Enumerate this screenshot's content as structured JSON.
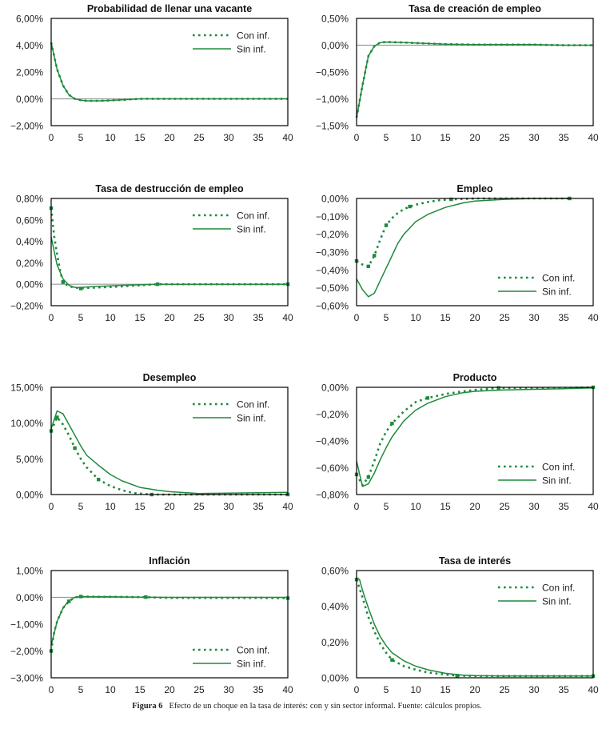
{
  "colors": {
    "series": "#1e8a3c",
    "zero_line": "#9a9a9a",
    "axis": "#000000"
  },
  "legend": {
    "con_label": "Con inf.",
    "sin_label": "Sin inf."
  },
  "caption": {
    "label": "Figura 6",
    "text": "Efecto de un choque en la tasa de interés: con y sin sector informal. Fuente: cálculos propios."
  },
  "chart_data": [
    {
      "type": "line",
      "title": "Probabilidad de llenar una vacante",
      "xlabel": "",
      "ylabel": "",
      "xlim": [
        0,
        40
      ],
      "ylim": [
        -2,
        6
      ],
      "xticks": [
        "0",
        "5",
        "10",
        "15",
        "20",
        "25",
        "30",
        "35",
        "40"
      ],
      "yticks": [
        -2,
        0,
        2,
        4,
        6
      ],
      "ytick_labels": [
        "−2,00%",
        "0,00%",
        "2,00%",
        "4,00%",
        "6,00%"
      ],
      "legend_position": "top-right",
      "series": [
        {
          "name": "Con inf.",
          "style": "dotted",
          "markers": [],
          "x": [
            0,
            1,
            2,
            3,
            4,
            5,
            6,
            8,
            10,
            12,
            15,
            20,
            25,
            30,
            35,
            40
          ],
          "y": [
            4.2,
            2.2,
            1.0,
            0.3,
            0.0,
            -0.1,
            -0.15,
            -0.15,
            -0.12,
            -0.08,
            0.0,
            0.0,
            0.0,
            0.0,
            0.0,
            0.0
          ]
        },
        {
          "name": "Sin inf.",
          "style": "solid",
          "x": [
            0,
            1,
            2,
            3,
            4,
            5,
            6,
            8,
            10,
            12,
            15,
            20,
            25,
            30,
            35,
            40
          ],
          "y": [
            4.2,
            2.2,
            1.0,
            0.3,
            0.0,
            -0.1,
            -0.15,
            -0.15,
            -0.12,
            -0.08,
            0.0,
            0.0,
            0.0,
            0.0,
            0.0,
            0.0
          ]
        }
      ]
    },
    {
      "type": "line",
      "title": "Tasa de creación de empleo",
      "xlabel": "",
      "ylabel": "",
      "xlim": [
        0,
        40
      ],
      "ylim": [
        -1.5,
        0.5
      ],
      "xticks": [
        "0",
        "5",
        "10",
        "15",
        "20",
        "25",
        "30",
        "35",
        "40"
      ],
      "yticks": [
        -1.5,
        -1.0,
        -0.5,
        0,
        0.5
      ],
      "ytick_labels": [
        "−1,50%",
        "−1,00%",
        "−0,50%",
        "0,00%",
        "0,50%"
      ],
      "legend_position": "none",
      "series": [
        {
          "name": "Con inf.",
          "style": "dotted",
          "markers": [],
          "x": [
            0,
            1,
            2,
            3,
            4,
            5,
            8,
            10,
            15,
            20,
            25,
            30,
            35,
            40
          ],
          "y": [
            -1.35,
            -0.75,
            -0.2,
            -0.02,
            0.05,
            0.06,
            0.05,
            0.04,
            0.02,
            0.01,
            0.01,
            0.01,
            0.0,
            0.0
          ]
        },
        {
          "name": "Sin inf.",
          "style": "solid",
          "x": [
            0,
            1,
            2,
            3,
            4,
            5,
            8,
            10,
            15,
            20,
            25,
            30,
            35,
            40
          ],
          "y": [
            -1.35,
            -0.75,
            -0.2,
            -0.02,
            0.05,
            0.06,
            0.05,
            0.04,
            0.02,
            0.01,
            0.01,
            0.01,
            0.0,
            0.0
          ]
        }
      ]
    },
    {
      "type": "line",
      "title": "Tasa de destrucción de empleo",
      "xlabel": "",
      "ylabel": "",
      "xlim": [
        0,
        40
      ],
      "ylim": [
        -0.2,
        0.8
      ],
      "xticks": [
        "0",
        "5",
        "10",
        "15",
        "20",
        "25",
        "30",
        "35",
        "40"
      ],
      "yticks": [
        -0.2,
        0,
        0.2,
        0.4,
        0.6,
        0.8
      ],
      "ytick_labels": [
        "−0,20%",
        "0,00%",
        "0,20%",
        "0,40%",
        "0,60%",
        "0,80%"
      ],
      "legend_position": "top-right",
      "series": [
        {
          "name": "Con inf.",
          "style": "dotted",
          "markers": [
            0,
            2,
            5,
            18,
            40
          ],
          "x": [
            0,
            0.5,
            1,
            1.5,
            2,
            3,
            4,
            5,
            6,
            8,
            10,
            12,
            15,
            18,
            20,
            25,
            30,
            35,
            40
          ],
          "y": [
            0.71,
            0.45,
            0.28,
            0.13,
            0.02,
            -0.02,
            -0.03,
            -0.04,
            -0.035,
            -0.03,
            -0.025,
            -0.02,
            -0.01,
            0.0,
            0.0,
            0.0,
            0.0,
            0.0,
            0.0
          ]
        },
        {
          "name": "Sin inf.",
          "style": "solid",
          "x": [
            0,
            1,
            2,
            3,
            4,
            5,
            6,
            8,
            10,
            12,
            15,
            18,
            20,
            25,
            30,
            35,
            40
          ],
          "y": [
            0.44,
            0.18,
            0.05,
            -0.01,
            -0.03,
            -0.03,
            -0.025,
            -0.02,
            -0.015,
            -0.01,
            -0.005,
            0.0,
            0.0,
            0.0,
            0.0,
            0.0,
            0.0
          ]
        }
      ]
    },
    {
      "type": "line",
      "title": "Empleo",
      "xlabel": "",
      "ylabel": "",
      "xlim": [
        0,
        40
      ],
      "ylim": [
        -0.6,
        0.0
      ],
      "xticks": [
        "0",
        "5",
        "10",
        "15",
        "20",
        "25",
        "30",
        "35",
        "40"
      ],
      "yticks": [
        -0.6,
        -0.5,
        -0.4,
        -0.3,
        -0.2,
        -0.1,
        0.0
      ],
      "ytick_labels": [
        "−0,60%",
        "−0,50%",
        "−0,40%",
        "−0,30%",
        "−0,20%",
        "−0,10%",
        "0,00%"
      ],
      "legend_position": "bottom-right",
      "series": [
        {
          "name": "Con inf.",
          "style": "dotted",
          "markers": [
            0,
            2,
            3,
            5,
            9,
            16,
            36
          ],
          "x": [
            0,
            1,
            2,
            3,
            4,
            5,
            6,
            7,
            8,
            9,
            10,
            12,
            14,
            16,
            20,
            25,
            30,
            36
          ],
          "y": [
            -0.35,
            -0.37,
            -0.38,
            -0.32,
            -0.23,
            -0.15,
            -0.11,
            -0.08,
            -0.06,
            -0.045,
            -0.035,
            -0.02,
            -0.01,
            -0.005,
            0.0,
            0.0,
            0.0,
            0.0
          ]
        },
        {
          "name": "Sin inf.",
          "style": "solid",
          "x": [
            0,
            1,
            2,
            3,
            4,
            5,
            6,
            7,
            8,
            10,
            12,
            15,
            18,
            20,
            25,
            30,
            36
          ],
          "y": [
            -0.45,
            -0.51,
            -0.55,
            -0.53,
            -0.46,
            -0.39,
            -0.32,
            -0.25,
            -0.2,
            -0.13,
            -0.09,
            -0.05,
            -0.025,
            -0.015,
            -0.005,
            0.0,
            0.0
          ]
        }
      ]
    },
    {
      "type": "line",
      "title": "Desempleo",
      "xlabel": "",
      "ylabel": "",
      "xlim": [
        0,
        40
      ],
      "ylim": [
        0,
        15
      ],
      "xticks": [
        "0",
        "5",
        "10",
        "15",
        "20",
        "25",
        "30",
        "35",
        "40"
      ],
      "yticks": [
        0,
        5,
        10,
        15
      ],
      "ytick_labels": [
        "0,00%",
        "5,00%",
        "10,00%",
        "15,00%"
      ],
      "legend_position": "top-right",
      "series": [
        {
          "name": "Con inf.",
          "style": "dotted",
          "markers": [
            0,
            1,
            4,
            8,
            17,
            40
          ],
          "x": [
            0,
            1,
            2,
            3,
            4,
            5,
            6,
            8,
            10,
            12,
            14,
            17,
            20,
            25,
            30,
            35,
            40
          ],
          "y": [
            8.9,
            10.8,
            9.8,
            8.3,
            6.5,
            5.0,
            3.8,
            2.1,
            1.2,
            0.6,
            0.2,
            0.0,
            0.0,
            0.0,
            0.0,
            0.0,
            0.0
          ]
        },
        {
          "name": "Sin inf.",
          "style": "solid",
          "x": [
            0,
            1,
            2,
            3,
            4,
            5,
            6,
            8,
            10,
            12,
            15,
            18,
            20,
            25,
            30,
            35,
            40
          ],
          "y": [
            9.2,
            11.7,
            11.3,
            9.8,
            8.3,
            6.8,
            5.5,
            4.1,
            2.8,
            1.9,
            1.0,
            0.6,
            0.4,
            0.15,
            0.2,
            0.25,
            0.3
          ]
        }
      ]
    },
    {
      "type": "line",
      "title": "Producto",
      "xlabel": "",
      "ylabel": "",
      "xlim": [
        0,
        40
      ],
      "ylim": [
        -0.8,
        0.0
      ],
      "xticks": [
        "0",
        "5",
        "10",
        "15",
        "20",
        "25",
        "30",
        "35",
        "40"
      ],
      "yticks": [
        -0.8,
        -0.6,
        -0.4,
        -0.2,
        0.0
      ],
      "ytick_labels": [
        "−0,80%",
        "−0,60%",
        "−0,40%",
        "−0,20%",
        "0,00%"
      ],
      "legend_position": "bottom-right",
      "series": [
        {
          "name": "Con inf.",
          "style": "dotted",
          "markers": [
            0,
            2,
            6,
            12,
            24,
            40
          ],
          "x": [
            0,
            1,
            2,
            3,
            4,
            5,
            6,
            8,
            10,
            12,
            15,
            18,
            20,
            24,
            30,
            35,
            40
          ],
          "y": [
            -0.65,
            -0.73,
            -0.67,
            -0.55,
            -0.42,
            -0.33,
            -0.27,
            -0.18,
            -0.11,
            -0.08,
            -0.05,
            -0.03,
            -0.02,
            -0.005,
            -0.005,
            -0.005,
            0.0
          ]
        },
        {
          "name": "Sin inf.",
          "style": "solid",
          "x": [
            0,
            1,
            2,
            3,
            4,
            5,
            6,
            8,
            10,
            12,
            15,
            18,
            20,
            25,
            30,
            35,
            40
          ],
          "y": [
            -0.55,
            -0.74,
            -0.72,
            -0.64,
            -0.54,
            -0.45,
            -0.37,
            -0.25,
            -0.17,
            -0.12,
            -0.07,
            -0.04,
            -0.03,
            -0.02,
            -0.015,
            -0.01,
            -0.005
          ]
        }
      ]
    },
    {
      "type": "line",
      "title": "Inflación",
      "xlabel": "",
      "ylabel": "",
      "xlim": [
        0,
        40
      ],
      "ylim": [
        -3,
        1
      ],
      "xticks": [
        "0",
        "5",
        "10",
        "15",
        "20",
        "25",
        "30",
        "35",
        "40"
      ],
      "yticks": [
        -3,
        -2,
        -1,
        0,
        1
      ],
      "ytick_labels": [
        "−3,00%",
        "−2,00%",
        "−1,00%",
        "0,00%",
        "1,00%"
      ],
      "legend_position": "bottom-right",
      "series": [
        {
          "name": "Con inf.",
          "style": "dotted",
          "markers": [
            0,
            3,
            5,
            16,
            40
          ],
          "x": [
            0,
            0.5,
            1,
            2,
            3,
            4,
            5,
            8,
            10,
            16,
            20,
            25,
            30,
            35,
            40
          ],
          "y": [
            -2.0,
            -1.3,
            -0.9,
            -0.4,
            -0.15,
            0.0,
            0.03,
            0.02,
            0.02,
            0.01,
            -0.02,
            -0.02,
            -0.02,
            -0.02,
            -0.03
          ]
        },
        {
          "name": "Sin inf.",
          "style": "solid",
          "x": [
            0,
            1,
            2,
            3,
            4,
            5,
            8,
            10,
            15,
            20,
            25,
            30,
            35,
            40
          ],
          "y": [
            -1.8,
            -0.9,
            -0.4,
            -0.12,
            0.0,
            0.03,
            0.02,
            0.02,
            0.01,
            0.0,
            0.0,
            0.0,
            0.0,
            0.0
          ]
        }
      ]
    },
    {
      "type": "line",
      "title": "Tasa de interés",
      "xlabel": "",
      "ylabel": "",
      "xlim": [
        0,
        40
      ],
      "ylim": [
        0,
        0.6
      ],
      "xticks": [
        "0",
        "5",
        "10",
        "15",
        "20",
        "25",
        "30",
        "35",
        "40"
      ],
      "yticks": [
        0,
        0.2,
        0.4,
        0.6
      ],
      "ytick_labels": [
        "0,00%",
        "0,20%",
        "0,40%",
        "0,60%"
      ],
      "legend_position": "top-right",
      "series": [
        {
          "name": "Con inf.",
          "style": "dotted",
          "markers": [
            0,
            6,
            17,
            40
          ],
          "x": [
            0,
            1,
            2,
            3,
            4,
            5,
            6,
            8,
            10,
            12,
            15,
            17,
            20,
            25,
            30,
            35,
            40
          ],
          "y": [
            0.55,
            0.45,
            0.34,
            0.26,
            0.19,
            0.14,
            0.1,
            0.065,
            0.045,
            0.03,
            0.018,
            0.012,
            0.01,
            0.01,
            0.01,
            0.01,
            0.01
          ]
        },
        {
          "name": "Sin inf.",
          "style": "solid",
          "x": [
            0,
            0.5,
            1,
            2,
            3,
            4,
            5,
            6,
            8,
            10,
            12,
            15,
            18,
            20,
            25,
            30,
            35,
            40
          ],
          "y": [
            0.56,
            0.55,
            0.49,
            0.39,
            0.3,
            0.23,
            0.18,
            0.14,
            0.095,
            0.065,
            0.045,
            0.025,
            0.015,
            0.012,
            0.01,
            0.01,
            0.01,
            0.01
          ]
        }
      ]
    }
  ]
}
